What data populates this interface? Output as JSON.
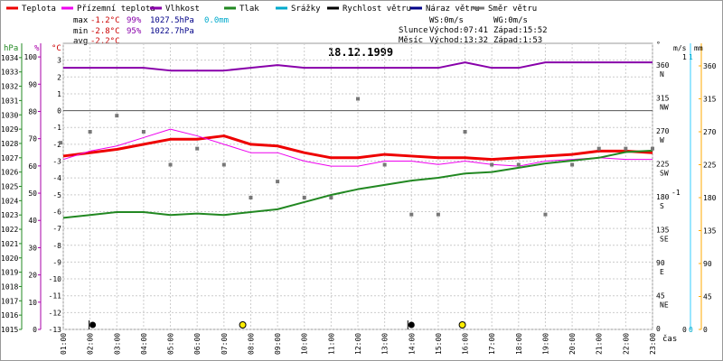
{
  "legend": [
    {
      "label": "Teplota",
      "color": "#ee0000"
    },
    {
      "label": "Přízemní teplota",
      "color": "#ee00ee"
    },
    {
      "label": "Vlhkost",
      "color": "#8800aa"
    },
    {
      "label": "Tlak",
      "color": "#228822"
    },
    {
      "label": "Srážky",
      "color": "#00aacc"
    },
    {
      "label": "Rychlost větru",
      "color": "#000000"
    },
    {
      "label": "Náraz větru",
      "color": "#000088"
    },
    {
      "label": "Směr větru",
      "color": "#777777"
    }
  ],
  "stats": {
    "max": {
      "label": "max",
      "temp": "-1.2°C",
      "hum": "99%",
      "press": "1027.5hPa",
      "rain": "0.0mm"
    },
    "min": {
      "label": "min",
      "temp": "-2.8°C",
      "hum": "95%",
      "press": "1022.7hPa"
    },
    "avg": {
      "label": "avg",
      "temp": "-2.2°C"
    }
  },
  "wind_info": {
    "ws": "WS:0m/s",
    "wg": "WG:0m/s",
    "sun": {
      "label": "Slunce",
      "rise": "Východ:07:41",
      "set": "Západ:15:52"
    },
    "moon": {
      "label": "Měsíc",
      "rise": "Východ:13:32",
      "set": "Západ:1:53"
    }
  },
  "chart_data": {
    "type": "line",
    "title": "18.12.1999",
    "x_unit": "čas",
    "x": [
      "01:00",
      "02:00",
      "03:00",
      "04:00",
      "05:00",
      "06:00",
      "07:00",
      "08:00",
      "09:00",
      "10:00",
      "11:00",
      "12:00",
      "13:00",
      "14:00",
      "15:00",
      "16:00",
      "17:00",
      "18:00",
      "19:00",
      "20:00",
      "21:00",
      "22:00",
      "23:00"
    ],
    "axes": {
      "pressure": {
        "label": "hPa",
        "range": [
          1015,
          1035
        ],
        "ticks": [
          1015,
          1016,
          1017,
          1018,
          1019,
          1020,
          1021,
          1022,
          1023,
          1024,
          1025,
          1026,
          1027,
          1028,
          1029,
          1030,
          1031,
          1032,
          1033,
          1034
        ],
        "color": "#228822"
      },
      "humidity": {
        "label": "%",
        "range": [
          0,
          105
        ],
        "ticks": [
          0,
          10,
          20,
          30,
          40,
          50,
          60,
          70,
          80,
          90,
          100
        ],
        "color": "#8800aa"
      },
      "temperature": {
        "label": "°C",
        "range": [
          -13,
          4
        ],
        "ticks": [
          -13,
          -12,
          -11,
          -10,
          -9,
          -8,
          -7,
          -6,
          -5,
          -4,
          -3,
          -2,
          -1,
          0,
          1,
          2,
          3
        ],
        "color": "#ee0000"
      },
      "direction": {
        "label": "°",
        "range": [
          0,
          360
        ],
        "ticks": [
          {
            "v": 0,
            "t": "0"
          },
          {
            "v": 45,
            "t": "45"
          },
          {
            "v": 90,
            "t": "90"
          },
          {
            "v": 135,
            "t": "135"
          },
          {
            "v": 180,
            "t": "180"
          },
          {
            "v": 225,
            "t": "225"
          },
          {
            "v": 270,
            "t": "270"
          },
          {
            "v": 315,
            "t": "315"
          },
          {
            "v": 360,
            "t": "360"
          }
        ],
        "names": [
          {
            "v": 45,
            "t": "NE"
          },
          {
            "v": 90,
            "t": "E"
          },
          {
            "v": 135,
            "t": "SE"
          },
          {
            "v": 180,
            "t": "S"
          },
          {
            "v": 225,
            "t": "SW"
          },
          {
            "v": 270,
            "t": "W"
          },
          {
            "v": 315,
            "t": "NW"
          },
          {
            "v": 360,
            "t": "N"
          }
        ]
      },
      "wind": {
        "label": "m/s",
        "ticks": [
          {
            "v": 0,
            "t": "0"
          },
          {
            "v": 1,
            "t": "1"
          }
        ]
      },
      "rain": {
        "label": "mm",
        "ticks": [
          {
            "v": 0,
            "t": "0"
          },
          {
            "v": 1,
            "t": "1"
          }
        ]
      },
      "right_scale": {
        "ticks": [
          {
            "v": 0,
            "t": "0"
          },
          {
            "v": 45,
            "t": "45"
          },
          {
            "v": 90,
            "t": "90"
          },
          {
            "v": 135,
            "t": "135"
          },
          {
            "v": 180,
            "t": "180"
          },
          {
            "v": 225,
            "t": "225"
          },
          {
            "v": 270,
            "t": "270"
          },
          {
            "v": 315,
            "t": "315"
          },
          {
            "v": 360,
            "t": "360"
          }
        ]
      }
    },
    "series": [
      {
        "name": "Teplota",
        "axis": "temperature",
        "values": [
          -2.7,
          -2.5,
          -2.3,
          -2.0,
          -1.7,
          -1.7,
          -1.5,
          -2.0,
          -2.1,
          -2.5,
          -2.8,
          -2.8,
          -2.6,
          -2.7,
          -2.8,
          -2.8,
          -2.9,
          -2.8,
          -2.7,
          -2.6,
          -2.4,
          -2.4,
          -2.5
        ]
      },
      {
        "name": "Přízemní teplota",
        "axis": "temperature",
        "values": [
          -2.9,
          -2.4,
          -2.1,
          -1.6,
          -1.1,
          -1.5,
          -2.0,
          -2.5,
          -2.5,
          -3.0,
          -3.3,
          -3.3,
          -3.0,
          -3.0,
          -3.2,
          -3.0,
          -3.2,
          -3.3,
          -3.0,
          -2.9,
          -2.8,
          -2.9,
          -2.9
        ]
      },
      {
        "name": "Vlhkost",
        "axis": "humidity",
        "values": [
          96,
          96,
          96,
          96,
          95,
          95,
          95,
          96,
          97,
          96,
          96,
          96,
          96,
          96,
          96,
          98,
          96,
          96,
          98,
          98,
          98,
          98,
          98
        ]
      },
      {
        "name": "Tlak",
        "axis": "pressure",
        "values": [
          1022.8,
          1023.0,
          1023.2,
          1023.2,
          1023.0,
          1023.1,
          1023.0,
          1023.2,
          1023.4,
          1023.9,
          1024.4,
          1024.8,
          1025.1,
          1025.4,
          1025.6,
          1025.9,
          1026.0,
          1026.3,
          1026.6,
          1026.8,
          1027.0,
          1027.4,
          1027.5
        ]
      },
      {
        "name": "Směr větru",
        "axis": "direction",
        "points": [
          [
            0.9,
            255
          ],
          [
            2,
            270
          ],
          [
            3,
            292
          ],
          [
            4,
            270
          ],
          [
            5,
            225
          ],
          [
            6,
            247
          ],
          [
            7,
            225
          ],
          [
            8,
            180
          ],
          [
            9,
            202
          ],
          [
            10,
            180
          ],
          [
            11,
            180
          ],
          [
            12,
            315
          ],
          [
            13,
            225
          ],
          [
            14,
            157
          ],
          [
            15,
            157
          ],
          [
            16,
            270
          ],
          [
            17,
            225
          ],
          [
            18,
            225
          ],
          [
            19,
            157
          ],
          [
            20,
            225
          ],
          [
            21,
            247
          ],
          [
            22,
            247
          ],
          [
            23,
            247
          ]
        ]
      }
    ],
    "wind_symbols": [
      {
        "x": 2.1,
        "kind": "calm",
        "color": "#000000"
      },
      {
        "x": 14.0,
        "kind": "calm",
        "color": "#000000"
      }
    ],
    "sun_moon": [
      {
        "x": 7.7,
        "kind": "sunrise",
        "color": "#ffee00"
      },
      {
        "x": 15.9,
        "kind": "sunset",
        "color": "#ffee00"
      }
    ],
    "grid": true
  }
}
